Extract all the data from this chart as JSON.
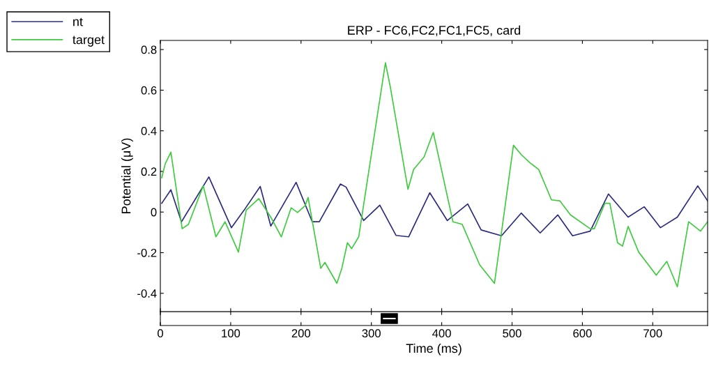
{
  "chart_data": {
    "type": "line",
    "title": "ERP - FC6,FC2,FC1,FC5, card",
    "xlabel": "Time (ms)",
    "ylabel": "Potential (μV)",
    "xlim": [
      0,
      778
    ],
    "ylim": [
      -0.49,
      0.845
    ],
    "xticks": [
      0,
      100,
      200,
      300,
      400,
      500,
      600,
      700
    ],
    "yticks": [
      -0.4,
      -0.2,
      0,
      0.2,
      0.4,
      0.6,
      0.8
    ],
    "grid": false,
    "legend": "top left",
    "line_style": "solid",
    "marker": "none",
    "series": [
      {
        "name": "nt",
        "color": "#2a2a80",
        "x": [
          2,
          15,
          30,
          69,
          101,
          119,
          142,
          157,
          193,
          216,
          226,
          256,
          264,
          289,
          312,
          335,
          353,
          383,
          408,
          437,
          456,
          485,
          513,
          540,
          565,
          586,
          611,
          637,
          665,
          688,
          711,
          735,
          764,
          778
        ],
        "values": [
          0.043,
          0.11,
          -0.048,
          0.173,
          -0.077,
          0.009,
          0.126,
          -0.069,
          0.146,
          -0.048,
          -0.048,
          0.138,
          0.123,
          -0.042,
          0.034,
          -0.115,
          -0.122,
          0.095,
          -0.042,
          0.04,
          -0.088,
          -0.117,
          -0.005,
          -0.103,
          -0.014,
          -0.117,
          -0.094,
          0.089,
          -0.025,
          0.026,
          -0.077,
          -0.025,
          0.129,
          0.055
        ]
      },
      {
        "name": "target",
        "color": "#3ccc3c",
        "x": [
          2,
          7,
          15,
          31,
          40,
          61,
          79,
          92,
          111,
          122,
          140,
          157,
          172,
          186,
          195,
          206,
          210,
          228,
          234,
          251,
          258,
          266,
          272,
          282,
          320,
          327,
          352,
          360,
          375,
          388,
          416,
          429,
          454,
          475,
          502,
          513,
          525,
          538,
          556,
          568,
          583,
          611,
          617,
          632,
          639,
          650,
          657,
          665,
          680,
          705,
          720,
          735,
          751,
          768,
          778
        ],
        "values": [
          0.169,
          0.238,
          0.295,
          -0.082,
          -0.06,
          0.129,
          -0.122,
          -0.048,
          -0.197,
          0.009,
          0.066,
          -0.025,
          -0.122,
          0.021,
          -0.002,
          0.032,
          0.072,
          -0.277,
          -0.248,
          -0.351,
          -0.277,
          -0.151,
          -0.18,
          -0.122,
          0.735,
          0.615,
          0.112,
          0.209,
          0.272,
          0.392,
          -0.048,
          -0.06,
          -0.26,
          -0.351,
          0.329,
          0.283,
          0.244,
          0.209,
          0.06,
          0.055,
          -0.014,
          -0.082,
          -0.082,
          0.043,
          0.043,
          -0.151,
          -0.168,
          -0.071,
          -0.197,
          -0.311,
          -0.243,
          -0.368,
          -0.048,
          -0.094,
          -0.048
        ]
      }
    ],
    "tick_labels": "xy"
  }
}
